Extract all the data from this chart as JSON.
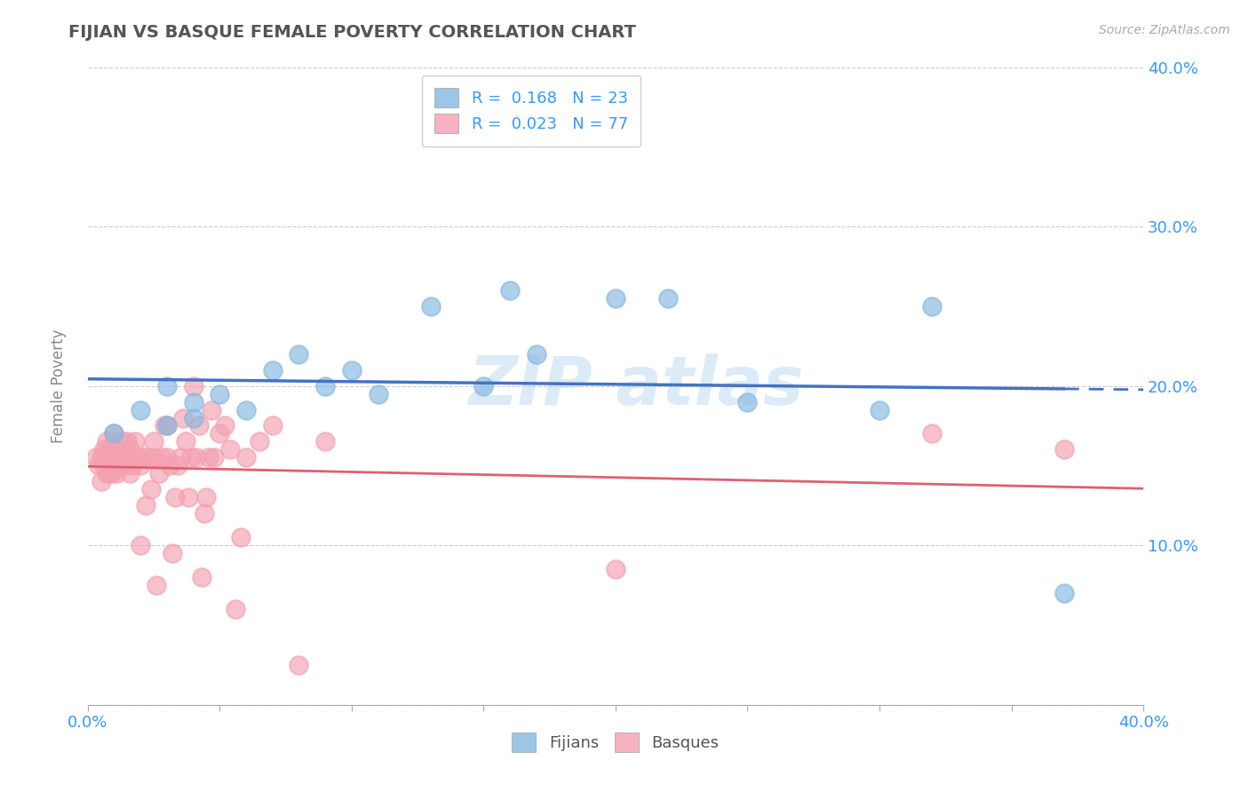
{
  "title": "FIJIAN VS BASQUE FEMALE POVERTY CORRELATION CHART",
  "source": "Source: ZipAtlas.com",
  "xlabel": "",
  "ylabel": "Female Poverty",
  "xlim": [
    0.0,
    0.4
  ],
  "ylim": [
    0.0,
    0.4
  ],
  "fijian_color": "#85b8e0",
  "basque_color": "#f4a0b0",
  "fijian_R": 0.168,
  "fijian_N": 23,
  "basque_R": 0.023,
  "basque_N": 77,
  "fijian_x": [
    0.01,
    0.02,
    0.03,
    0.03,
    0.04,
    0.04,
    0.05,
    0.06,
    0.07,
    0.08,
    0.09,
    0.1,
    0.11,
    0.13,
    0.15,
    0.16,
    0.17,
    0.2,
    0.22,
    0.25,
    0.3,
    0.32,
    0.37
  ],
  "fijian_y": [
    0.17,
    0.185,
    0.175,
    0.2,
    0.18,
    0.19,
    0.195,
    0.185,
    0.21,
    0.22,
    0.2,
    0.21,
    0.195,
    0.25,
    0.2,
    0.26,
    0.22,
    0.255,
    0.255,
    0.19,
    0.185,
    0.25,
    0.07
  ],
  "basque_x": [
    0.003,
    0.004,
    0.005,
    0.005,
    0.006,
    0.006,
    0.007,
    0.007,
    0.007,
    0.008,
    0.008,
    0.008,
    0.009,
    0.009,
    0.01,
    0.01,
    0.01,
    0.01,
    0.011,
    0.011,
    0.012,
    0.012,
    0.013,
    0.013,
    0.014,
    0.015,
    0.015,
    0.016,
    0.016,
    0.017,
    0.018,
    0.019,
    0.02,
    0.02,
    0.021,
    0.022,
    0.023,
    0.024,
    0.025,
    0.025,
    0.026,
    0.027,
    0.028,
    0.029,
    0.03,
    0.03,
    0.031,
    0.032,
    0.033,
    0.034,
    0.035,
    0.036,
    0.037,
    0.038,
    0.039,
    0.04,
    0.041,
    0.042,
    0.043,
    0.044,
    0.045,
    0.046,
    0.047,
    0.048,
    0.05,
    0.052,
    0.054,
    0.056,
    0.058,
    0.06,
    0.065,
    0.07,
    0.08,
    0.09,
    0.2,
    0.32,
    0.37
  ],
  "basque_y": [
    0.155,
    0.15,
    0.14,
    0.155,
    0.15,
    0.16,
    0.145,
    0.155,
    0.165,
    0.145,
    0.155,
    0.16,
    0.145,
    0.16,
    0.155,
    0.15,
    0.16,
    0.17,
    0.145,
    0.16,
    0.15,
    0.16,
    0.155,
    0.165,
    0.15,
    0.155,
    0.165,
    0.145,
    0.16,
    0.15,
    0.165,
    0.155,
    0.1,
    0.15,
    0.155,
    0.125,
    0.155,
    0.135,
    0.155,
    0.165,
    0.075,
    0.145,
    0.155,
    0.175,
    0.155,
    0.175,
    0.15,
    0.095,
    0.13,
    0.15,
    0.155,
    0.18,
    0.165,
    0.13,
    0.155,
    0.2,
    0.155,
    0.175,
    0.08,
    0.12,
    0.13,
    0.155,
    0.185,
    0.155,
    0.17,
    0.175,
    0.16,
    0.06,
    0.105,
    0.155,
    0.165,
    0.175,
    0.025,
    0.165,
    0.085,
    0.17,
    0.16
  ],
  "background_color": "#ffffff",
  "watermark_text": "ZIP atlas",
  "grid_color": "#cccccc",
  "fijian_line_color": "#4472c4",
  "basque_line_color": "#e06070",
  "legend_text_color": "#3399ff",
  "title_color": "#555555",
  "axis_tick_color": "#3399ff",
  "ylabel_color": "#888888"
}
